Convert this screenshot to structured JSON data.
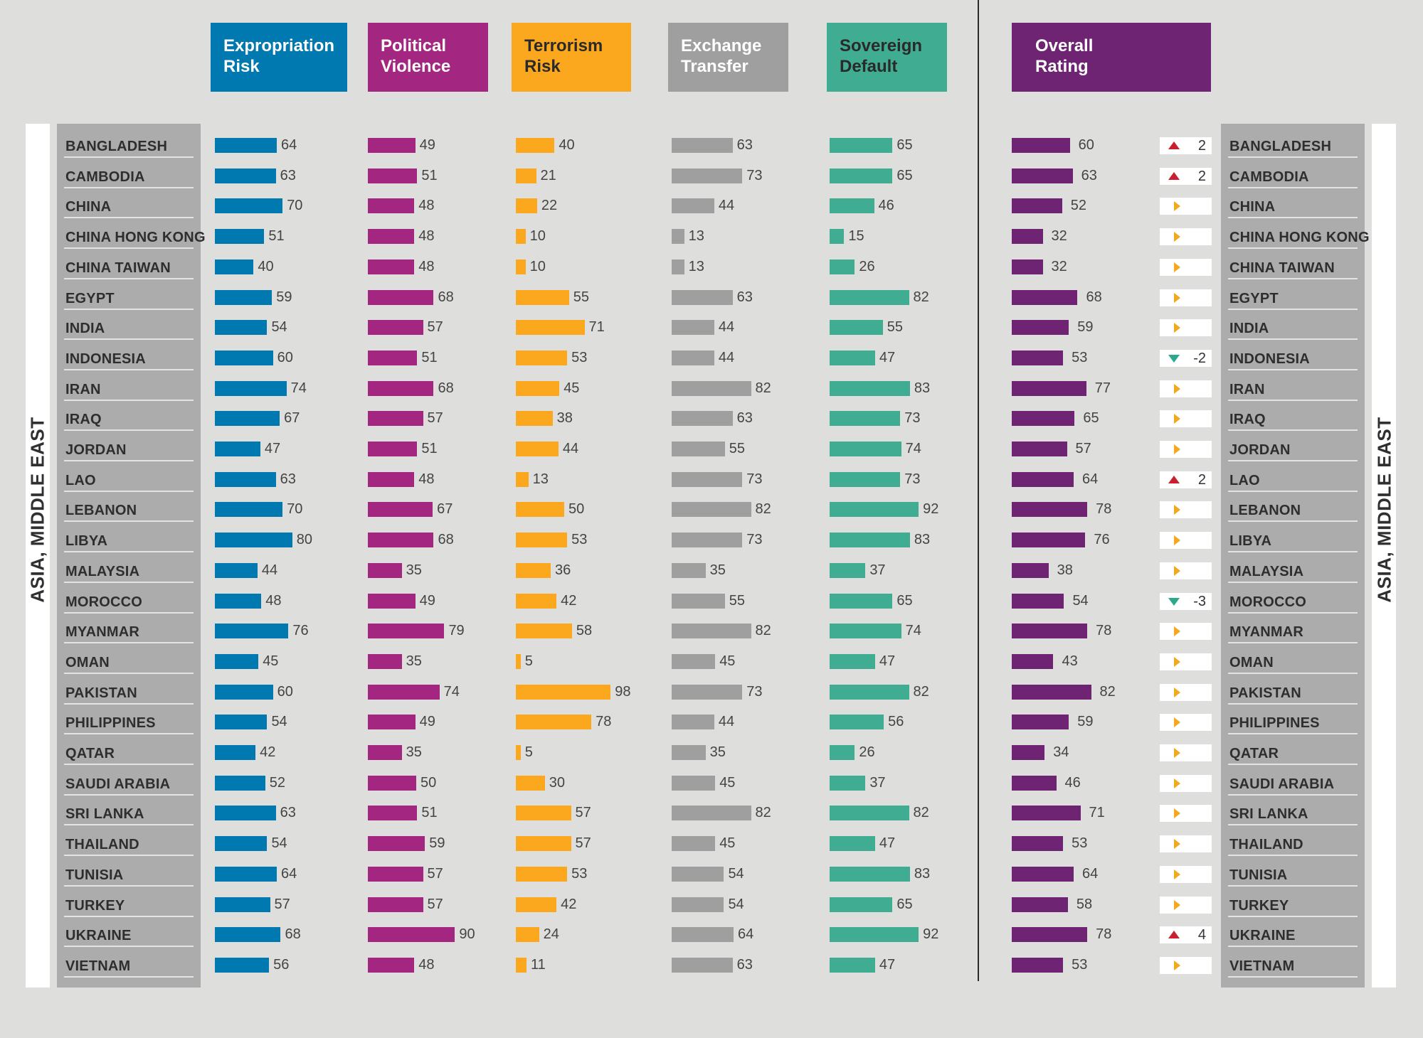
{
  "region_label": "ASIA, MIDDLE EAST",
  "colors": {
    "expropriation": "#0078b0",
    "political": "#a32681",
    "terrorism": "#fba81e",
    "exchange": "#9f9f9f",
    "sovereign": "#40ad93",
    "overall": "#6e2472"
  },
  "chart_data": {
    "type": "bar",
    "categories": [
      "BANGLADESH",
      "CAMBODIA",
      "CHINA",
      "CHINA HONG KONG",
      "CHINA TAIWAN",
      "EGYPT",
      "INDIA",
      "INDONESIA",
      "IRAN",
      "IRAQ",
      "JORDAN",
      "LAO",
      "LEBANON",
      "LIBYA",
      "MALAYSIA",
      "MOROCCO",
      "MYANMAR",
      "OMAN",
      "PAKISTAN",
      "PHILIPPINES",
      "QATAR",
      "SAUDI ARABIA",
      "SRI LANKA",
      "THAILAND",
      "TUNISIA",
      "TURKEY",
      "UKRAINE",
      "VIETNAM"
    ],
    "series": [
      {
        "name": "Expropriation Risk",
        "key": "expropriation",
        "values": [
          64,
          63,
          70,
          51,
          40,
          59,
          54,
          60,
          74,
          67,
          47,
          63,
          70,
          80,
          44,
          48,
          76,
          45,
          60,
          54,
          42,
          52,
          63,
          54,
          64,
          57,
          68,
          56
        ]
      },
      {
        "name": "Political Violence",
        "key": "political",
        "values": [
          49,
          51,
          48,
          48,
          48,
          68,
          57,
          51,
          68,
          57,
          51,
          48,
          67,
          68,
          35,
          49,
          79,
          35,
          74,
          49,
          35,
          50,
          51,
          59,
          57,
          57,
          90,
          48
        ]
      },
      {
        "name": "Terrorism Risk",
        "key": "terrorism",
        "values": [
          40,
          21,
          22,
          10,
          10,
          55,
          71,
          53,
          45,
          38,
          44,
          13,
          50,
          53,
          36,
          42,
          58,
          5,
          98,
          78,
          5,
          30,
          57,
          57,
          53,
          42,
          24,
          11
        ]
      },
      {
        "name": "Exchange Transfer",
        "key": "exchange",
        "values": [
          63,
          73,
          44,
          13,
          13,
          63,
          44,
          44,
          82,
          63,
          55,
          73,
          82,
          73,
          35,
          55,
          82,
          45,
          73,
          44,
          35,
          45,
          82,
          45,
          54,
          54,
          64,
          63
        ]
      },
      {
        "name": "Sovereign Default",
        "key": "sovereign",
        "values": [
          65,
          65,
          46,
          15,
          26,
          82,
          55,
          47,
          83,
          73,
          74,
          73,
          92,
          83,
          37,
          65,
          74,
          47,
          82,
          56,
          26,
          37,
          82,
          47,
          83,
          65,
          92,
          47
        ]
      },
      {
        "name": "Overall Rating",
        "key": "overall",
        "values": [
          60,
          63,
          52,
          32,
          32,
          68,
          59,
          53,
          77,
          65,
          57,
          64,
          78,
          76,
          38,
          54,
          78,
          43,
          82,
          59,
          34,
          46,
          71,
          53,
          64,
          58,
          78,
          53
        ]
      }
    ],
    "rating_change": [
      2,
      2,
      0,
      0,
      0,
      0,
      0,
      -2,
      0,
      0,
      0,
      2,
      0,
      0,
      0,
      -3,
      0,
      0,
      0,
      0,
      0,
      0,
      0,
      0,
      0,
      0,
      4,
      0
    ],
    "rating_change_labels": [
      "2",
      "2",
      "",
      "",
      "",
      "",
      "",
      "-2",
      "",
      "",
      "",
      "2",
      "",
      "",
      "",
      "-3",
      "",
      "",
      "",
      "",
      "",
      "",
      "",
      "",
      "",
      "",
      "4",
      ""
    ],
    "xlim": [
      0,
      100
    ]
  }
}
